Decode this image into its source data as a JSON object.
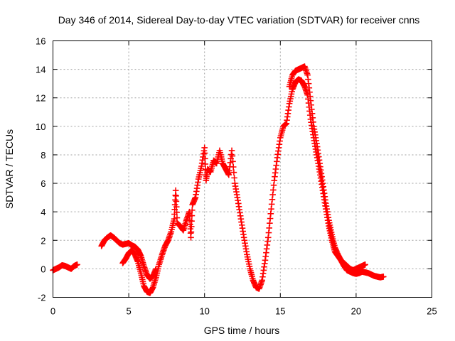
{
  "chart_data": {
    "type": "scatter",
    "title": "Day 346 of 2014, Sidereal Day-to-day VTEC variation (SDTVAR) for receiver cnns",
    "xlabel": "GPS time / hours",
    "ylabel": "SDTVAR / TECUs",
    "xlim": [
      0,
      25
    ],
    "ylim": [
      -2,
      16
    ],
    "xticks": [
      0,
      5,
      10,
      15,
      20,
      25
    ],
    "yticks": [
      -2,
      0,
      2,
      4,
      6,
      8,
      10,
      12,
      14,
      16
    ],
    "grid": true,
    "marker": "+",
    "color": "#ff0000",
    "series": [
      {
        "name": "SDTVAR",
        "segments": [
          [
            [
              0.0,
              -0.1
            ],
            [
              0.2,
              0.0
            ],
            [
              0.4,
              0.1
            ],
            [
              0.6,
              0.25
            ],
            [
              0.8,
              0.2
            ],
            [
              1.0,
              0.1
            ],
            [
              1.2,
              0.0
            ],
            [
              1.4,
              0.2
            ],
            [
              1.6,
              0.3
            ]
          ],
          [
            [
              3.2,
              1.6
            ],
            [
              3.4,
              2.0
            ],
            [
              3.6,
              2.2
            ],
            [
              3.8,
              2.35
            ],
            [
              4.0,
              2.2
            ],
            [
              4.2,
              2.0
            ],
            [
              4.4,
              1.8
            ],
            [
              4.6,
              1.7
            ],
            [
              4.8,
              1.75
            ],
            [
              5.0,
              1.8
            ],
            [
              5.2,
              1.65
            ],
            [
              5.4,
              1.55
            ],
            [
              5.6,
              1.35
            ],
            [
              5.8,
              0.9
            ],
            [
              6.0,
              0.2
            ],
            [
              6.2,
              -0.4
            ],
            [
              6.4,
              -0.7
            ],
            [
              6.6,
              -0.5
            ],
            [
              6.8,
              0.0
            ]
          ],
          [
            [
              4.6,
              0.4
            ],
            [
              4.8,
              0.7
            ],
            [
              5.0,
              1.1
            ],
            [
              5.2,
              1.3
            ],
            [
              5.4,
              1.0
            ],
            [
              5.6,
              0.5
            ],
            [
              5.8,
              -0.3
            ],
            [
              6.0,
              -1.2
            ],
            [
              6.2,
              -1.6
            ],
            [
              6.4,
              -1.7
            ],
            [
              6.6,
              -1.3
            ],
            [
              6.8,
              -0.6
            ],
            [
              7.0,
              0.3
            ],
            [
              7.2,
              1.0
            ],
            [
              7.4,
              1.6
            ],
            [
              7.6,
              2.0
            ],
            [
              7.8,
              2.6
            ],
            [
              8.0,
              3.5
            ],
            [
              8.1,
              5.5
            ],
            [
              8.2,
              3.2
            ],
            [
              8.4,
              3.0
            ],
            [
              8.6,
              2.7
            ],
            [
              8.8,
              3.4
            ],
            [
              9.0,
              4.0
            ],
            [
              9.1,
              2.2
            ],
            [
              9.2,
              4.5
            ],
            [
              9.4,
              5.0
            ],
            [
              9.6,
              6.3
            ],
            [
              9.8,
              7.2
            ],
            [
              10.0,
              8.5
            ],
            [
              10.1,
              6.2
            ],
            [
              10.2,
              7.0
            ],
            [
              10.4,
              6.8
            ],
            [
              10.6,
              7.6
            ],
            [
              10.8,
              7.4
            ],
            [
              11.0,
              8.3
            ],
            [
              11.2,
              7.4
            ],
            [
              11.4,
              7.0
            ],
            [
              11.6,
              6.6
            ],
            [
              11.8,
              8.3
            ],
            [
              12.0,
              6.0
            ],
            [
              12.2,
              4.8
            ],
            [
              12.4,
              3.5
            ],
            [
              12.6,
              2.2
            ],
            [
              12.8,
              1.0
            ],
            [
              13.0,
              0.0
            ],
            [
              13.2,
              -0.8
            ],
            [
              13.4,
              -1.3
            ],
            [
              13.6,
              -1.4
            ],
            [
              13.8,
              -0.8
            ],
            [
              14.0,
              0.6
            ],
            [
              14.2,
              2.2
            ],
            [
              14.4,
              4.2
            ],
            [
              14.6,
              6.2
            ],
            [
              14.8,
              7.8
            ],
            [
              15.0,
              9.2
            ],
            [
              15.2,
              10.0
            ],
            [
              15.4,
              10.2
            ],
            [
              15.6,
              11.6
            ],
            [
              15.8,
              12.6
            ],
            [
              16.0,
              13.1
            ],
            [
              16.2,
              13.3
            ],
            [
              16.4,
              13.2
            ],
            [
              16.6,
              12.8
            ],
            [
              16.8,
              12.2
            ],
            [
              17.0,
              10.5
            ],
            [
              17.2,
              9.2
            ],
            [
              17.4,
              8.0
            ],
            [
              17.6,
              6.8
            ],
            [
              17.8,
              5.5
            ],
            [
              18.0,
              4.2
            ],
            [
              18.2,
              3.0
            ],
            [
              18.4,
              2.0
            ],
            [
              18.6,
              1.2
            ],
            [
              18.8,
              0.9
            ],
            [
              19.0,
              0.6
            ],
            [
              19.2,
              0.4
            ],
            [
              19.4,
              0.2
            ],
            [
              19.6,
              0.0
            ],
            [
              19.8,
              -0.1
            ],
            [
              20.0,
              0.0
            ],
            [
              20.2,
              0.1
            ],
            [
              20.4,
              0.2
            ],
            [
              20.6,
              0.3
            ]
          ],
          [
            [
              15.6,
              12.8
            ],
            [
              15.8,
              13.6
            ],
            [
              16.0,
              13.9
            ],
            [
              16.2,
              14.0
            ],
            [
              16.4,
              14.1
            ],
            [
              16.6,
              14.2
            ],
            [
              16.8,
              13.6
            ],
            [
              17.0,
              11.8
            ],
            [
              17.2,
              10.0
            ],
            [
              17.4,
              8.8
            ],
            [
              17.6,
              7.4
            ],
            [
              17.8,
              6.0
            ],
            [
              18.0,
              4.6
            ],
            [
              18.2,
              3.4
            ],
            [
              18.4,
              2.4
            ],
            [
              18.6,
              1.5
            ],
            [
              18.8,
              1.0
            ],
            [
              19.0,
              0.6
            ],
            [
              19.2,
              0.2
            ],
            [
              19.4,
              -0.1
            ],
            [
              19.6,
              -0.2
            ],
            [
              19.8,
              -0.3
            ],
            [
              20.0,
              -0.35
            ],
            [
              20.2,
              -0.3
            ],
            [
              20.4,
              -0.2
            ],
            [
              20.6,
              -0.25
            ],
            [
              20.8,
              -0.3
            ],
            [
              21.0,
              -0.4
            ],
            [
              21.2,
              -0.5
            ],
            [
              21.4,
              -0.55
            ],
            [
              21.6,
              -0.6
            ],
            [
              21.8,
              -0.55
            ]
          ]
        ]
      }
    ]
  }
}
